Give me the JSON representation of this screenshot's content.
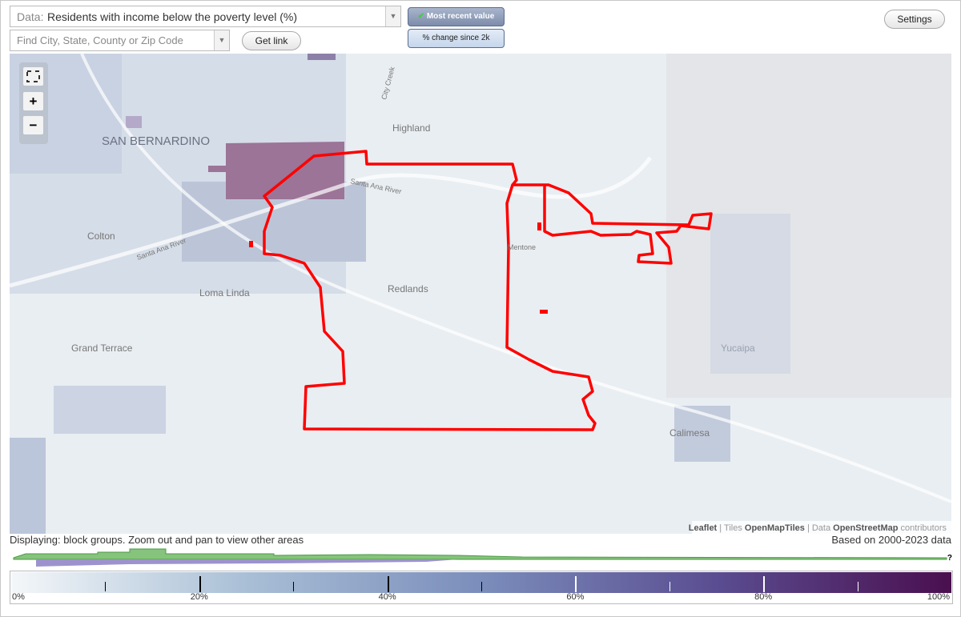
{
  "controls": {
    "data_label": "Data:",
    "data_select": "Residents with income below the poverty level (%)",
    "search_placeholder": "Find City, State, County or Zip Code",
    "get_link": "Get link",
    "most_recent": "Most recent value",
    "percent_change": "% change since 2k",
    "settings": "Settings",
    "zoom_in": "+",
    "zoom_out": "−"
  },
  "map": {
    "labels": [
      "SAN BERNARDINO",
      "Highland",
      "Colton",
      "Loma Linda",
      "Redlands",
      "Mentone",
      "Grand Terrace",
      "Calimesa",
      "Yucaipa",
      "City Creek",
      "Santa Ana River",
      "Santa Ana River"
    ],
    "attribution": [
      "Leaflet",
      "| Tiles",
      "OpenMapTiles",
      "| Data",
      "OpenStreetMap",
      "contributors"
    ]
  },
  "footer": {
    "displaying": "Displaying: block groups. Zoom out and pan to view other areas",
    "based_on": "Based on 2000-2023 data",
    "help": "?"
  },
  "legend": {
    "labels": [
      "0%",
      "20%",
      "40%",
      "60%",
      "80%",
      "100%"
    ]
  }
}
